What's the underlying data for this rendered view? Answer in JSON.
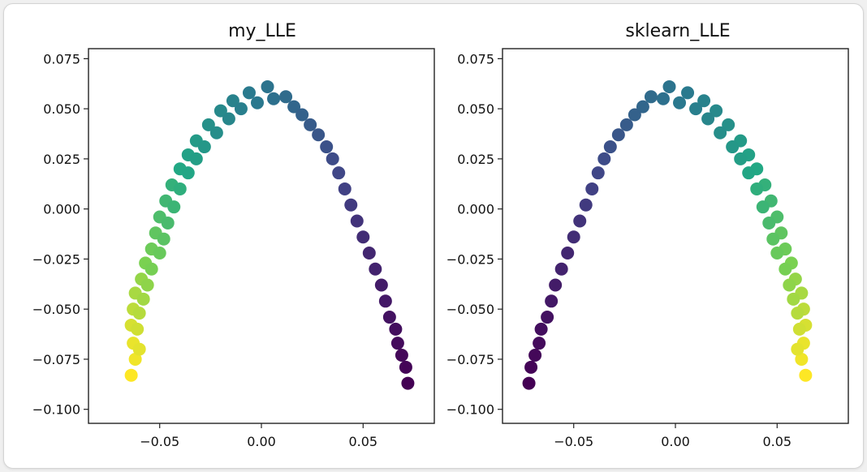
{
  "figure_background": "#ffffff",
  "colormap": [
    "#440154",
    "#414487",
    "#2a788e",
    "#22a884",
    "#7ad151",
    "#fde725"
  ],
  "chart_data": [
    {
      "type": "scatter",
      "title": "my_LLE",
      "xlabel": "",
      "ylabel": "",
      "xlim": [
        -0.085,
        0.085
      ],
      "ylim": [
        -0.107,
        0.08
      ],
      "xticks": [
        -0.05,
        0.0,
        0.05
      ],
      "xtick_labels": [
        "−0.05",
        "0.00",
        "0.05"
      ],
      "yticks": [
        0.075,
        0.05,
        0.025,
        0.0,
        -0.025,
        -0.05,
        -0.075,
        -0.1
      ],
      "ytick_labels": [
        "0.075",
        "0.050",
        "0.025",
        "0.000",
        "−0.025",
        "−0.050",
        "−0.075",
        "−0.100"
      ],
      "color_by": "color_value (0 = dark purple, 1 = yellow)",
      "points": [
        {
          "x": -0.064,
          "y": -0.083,
          "c": 1.0
        },
        {
          "x": -0.062,
          "y": -0.075,
          "c": 0.98
        },
        {
          "x": -0.063,
          "y": -0.067,
          "c": 0.97
        },
        {
          "x": -0.06,
          "y": -0.07,
          "c": 0.96
        },
        {
          "x": -0.064,
          "y": -0.058,
          "c": 0.94
        },
        {
          "x": -0.061,
          "y": -0.06,
          "c": 0.93
        },
        {
          "x": -0.063,
          "y": -0.05,
          "c": 0.9
        },
        {
          "x": -0.06,
          "y": -0.052,
          "c": 0.89
        },
        {
          "x": -0.062,
          "y": -0.042,
          "c": 0.87
        },
        {
          "x": -0.058,
          "y": -0.045,
          "c": 0.86
        },
        {
          "x": -0.059,
          "y": -0.035,
          "c": 0.84
        },
        {
          "x": -0.056,
          "y": -0.038,
          "c": 0.83
        },
        {
          "x": -0.057,
          "y": -0.027,
          "c": 0.8
        },
        {
          "x": -0.054,
          "y": -0.03,
          "c": 0.79
        },
        {
          "x": -0.054,
          "y": -0.02,
          "c": 0.77
        },
        {
          "x": -0.05,
          "y": -0.022,
          "c": 0.76
        },
        {
          "x": -0.052,
          "y": -0.012,
          "c": 0.74
        },
        {
          "x": -0.048,
          "y": -0.015,
          "c": 0.73
        },
        {
          "x": -0.05,
          "y": -0.004,
          "c": 0.7
        },
        {
          "x": -0.046,
          "y": -0.007,
          "c": 0.69
        },
        {
          "x": -0.047,
          "y": 0.004,
          "c": 0.67
        },
        {
          "x": -0.043,
          "y": 0.001,
          "c": 0.66
        },
        {
          "x": -0.044,
          "y": 0.012,
          "c": 0.64
        },
        {
          "x": -0.04,
          "y": 0.01,
          "c": 0.63
        },
        {
          "x": -0.04,
          "y": 0.02,
          "c": 0.6
        },
        {
          "x": -0.036,
          "y": 0.018,
          "c": 0.59
        },
        {
          "x": -0.036,
          "y": 0.027,
          "c": 0.57
        },
        {
          "x": -0.032,
          "y": 0.025,
          "c": 0.56
        },
        {
          "x": -0.032,
          "y": 0.034,
          "c": 0.54
        },
        {
          "x": -0.028,
          "y": 0.031,
          "c": 0.53
        },
        {
          "x": -0.026,
          "y": 0.042,
          "c": 0.5
        },
        {
          "x": -0.022,
          "y": 0.038,
          "c": 0.49
        },
        {
          "x": -0.02,
          "y": 0.049,
          "c": 0.47
        },
        {
          "x": -0.016,
          "y": 0.045,
          "c": 0.46
        },
        {
          "x": -0.014,
          "y": 0.054,
          "c": 0.44
        },
        {
          "x": -0.01,
          "y": 0.05,
          "c": 0.43
        },
        {
          "x": -0.006,
          "y": 0.058,
          "c": 0.41
        },
        {
          "x": -0.002,
          "y": 0.053,
          "c": 0.4
        },
        {
          "x": 0.003,
          "y": 0.061,
          "c": 0.38
        },
        {
          "x": 0.006,
          "y": 0.055,
          "c": 0.37
        },
        {
          "x": 0.012,
          "y": 0.056,
          "c": 0.35
        },
        {
          "x": 0.016,
          "y": 0.051,
          "c": 0.33
        },
        {
          "x": 0.02,
          "y": 0.047,
          "c": 0.31
        },
        {
          "x": 0.024,
          "y": 0.042,
          "c": 0.29
        },
        {
          "x": 0.028,
          "y": 0.037,
          "c": 0.27
        },
        {
          "x": 0.032,
          "y": 0.031,
          "c": 0.25
        },
        {
          "x": 0.035,
          "y": 0.025,
          "c": 0.23
        },
        {
          "x": 0.038,
          "y": 0.018,
          "c": 0.21
        },
        {
          "x": 0.041,
          "y": 0.01,
          "c": 0.19
        },
        {
          "x": 0.044,
          "y": 0.002,
          "c": 0.17
        },
        {
          "x": 0.047,
          "y": -0.006,
          "c": 0.15
        },
        {
          "x": 0.05,
          "y": -0.014,
          "c": 0.13
        },
        {
          "x": 0.053,
          "y": -0.022,
          "c": 0.11
        },
        {
          "x": 0.056,
          "y": -0.03,
          "c": 0.1
        },
        {
          "x": 0.059,
          "y": -0.038,
          "c": 0.08
        },
        {
          "x": 0.061,
          "y": -0.046,
          "c": 0.07
        },
        {
          "x": 0.063,
          "y": -0.054,
          "c": 0.05
        },
        {
          "x": 0.066,
          "y": -0.06,
          "c": 0.04
        },
        {
          "x": 0.067,
          "y": -0.067,
          "c": 0.03
        },
        {
          "x": 0.069,
          "y": -0.073,
          "c": 0.02
        },
        {
          "x": 0.071,
          "y": -0.079,
          "c": 0.01
        },
        {
          "x": 0.072,
          "y": -0.087,
          "c": 0.0
        }
      ]
    },
    {
      "type": "scatter",
      "title": "sklearn_LLE",
      "xlabel": "",
      "ylabel": "",
      "xlim": [
        -0.085,
        0.085
      ],
      "ylim": [
        -0.107,
        0.08
      ],
      "xticks": [
        -0.05,
        0.0,
        0.05
      ],
      "xtick_labels": [
        "−0.05",
        "0.00",
        "0.05"
      ],
      "yticks": [
        0.075,
        0.05,
        0.025,
        0.0,
        -0.025,
        -0.05,
        -0.075,
        -0.1
      ],
      "ytick_labels": [
        "0.075",
        "0.050",
        "0.025",
        "0.000",
        "−0.025",
        "−0.050",
        "−0.075",
        "−0.100"
      ],
      "color_by": "color_value (0 = dark purple, 1 = yellow)",
      "points": [
        {
          "x": 0.064,
          "y": -0.083,
          "c": 1.0
        },
        {
          "x": 0.062,
          "y": -0.075,
          "c": 0.98
        },
        {
          "x": 0.063,
          "y": -0.067,
          "c": 0.97
        },
        {
          "x": 0.06,
          "y": -0.07,
          "c": 0.96
        },
        {
          "x": 0.064,
          "y": -0.058,
          "c": 0.94
        },
        {
          "x": 0.061,
          "y": -0.06,
          "c": 0.93
        },
        {
          "x": 0.063,
          "y": -0.05,
          "c": 0.9
        },
        {
          "x": 0.06,
          "y": -0.052,
          "c": 0.89
        },
        {
          "x": 0.062,
          "y": -0.042,
          "c": 0.87
        },
        {
          "x": 0.058,
          "y": -0.045,
          "c": 0.86
        },
        {
          "x": 0.059,
          "y": -0.035,
          "c": 0.84
        },
        {
          "x": 0.056,
          "y": -0.038,
          "c": 0.83
        },
        {
          "x": 0.057,
          "y": -0.027,
          "c": 0.8
        },
        {
          "x": 0.054,
          "y": -0.03,
          "c": 0.79
        },
        {
          "x": 0.054,
          "y": -0.02,
          "c": 0.77
        },
        {
          "x": 0.05,
          "y": -0.022,
          "c": 0.76
        },
        {
          "x": 0.052,
          "y": -0.012,
          "c": 0.74
        },
        {
          "x": 0.048,
          "y": -0.015,
          "c": 0.73
        },
        {
          "x": 0.05,
          "y": -0.004,
          "c": 0.7
        },
        {
          "x": 0.046,
          "y": -0.007,
          "c": 0.69
        },
        {
          "x": 0.047,
          "y": 0.004,
          "c": 0.67
        },
        {
          "x": 0.043,
          "y": 0.001,
          "c": 0.66
        },
        {
          "x": 0.044,
          "y": 0.012,
          "c": 0.64
        },
        {
          "x": 0.04,
          "y": 0.01,
          "c": 0.63
        },
        {
          "x": 0.04,
          "y": 0.02,
          "c": 0.6
        },
        {
          "x": 0.036,
          "y": 0.018,
          "c": 0.59
        },
        {
          "x": 0.036,
          "y": 0.027,
          "c": 0.57
        },
        {
          "x": 0.032,
          "y": 0.025,
          "c": 0.56
        },
        {
          "x": 0.032,
          "y": 0.034,
          "c": 0.54
        },
        {
          "x": 0.028,
          "y": 0.031,
          "c": 0.53
        },
        {
          "x": 0.026,
          "y": 0.042,
          "c": 0.5
        },
        {
          "x": 0.022,
          "y": 0.038,
          "c": 0.49
        },
        {
          "x": 0.02,
          "y": 0.049,
          "c": 0.47
        },
        {
          "x": 0.016,
          "y": 0.045,
          "c": 0.46
        },
        {
          "x": 0.014,
          "y": 0.054,
          "c": 0.44
        },
        {
          "x": 0.01,
          "y": 0.05,
          "c": 0.43
        },
        {
          "x": 0.006,
          "y": 0.058,
          "c": 0.41
        },
        {
          "x": 0.002,
          "y": 0.053,
          "c": 0.4
        },
        {
          "x": -0.003,
          "y": 0.061,
          "c": 0.38
        },
        {
          "x": -0.006,
          "y": 0.055,
          "c": 0.37
        },
        {
          "x": -0.012,
          "y": 0.056,
          "c": 0.35
        },
        {
          "x": -0.016,
          "y": 0.051,
          "c": 0.33
        },
        {
          "x": -0.02,
          "y": 0.047,
          "c": 0.31
        },
        {
          "x": -0.024,
          "y": 0.042,
          "c": 0.29
        },
        {
          "x": -0.028,
          "y": 0.037,
          "c": 0.27
        },
        {
          "x": -0.032,
          "y": 0.031,
          "c": 0.25
        },
        {
          "x": -0.035,
          "y": 0.025,
          "c": 0.23
        },
        {
          "x": -0.038,
          "y": 0.018,
          "c": 0.21
        },
        {
          "x": -0.041,
          "y": 0.01,
          "c": 0.19
        },
        {
          "x": -0.044,
          "y": 0.002,
          "c": 0.17
        },
        {
          "x": -0.047,
          "y": -0.006,
          "c": 0.15
        },
        {
          "x": -0.05,
          "y": -0.014,
          "c": 0.13
        },
        {
          "x": -0.053,
          "y": -0.022,
          "c": 0.11
        },
        {
          "x": -0.056,
          "y": -0.03,
          "c": 0.1
        },
        {
          "x": -0.059,
          "y": -0.038,
          "c": 0.08
        },
        {
          "x": -0.061,
          "y": -0.046,
          "c": 0.07
        },
        {
          "x": -0.063,
          "y": -0.054,
          "c": 0.05
        },
        {
          "x": -0.066,
          "y": -0.06,
          "c": 0.04
        },
        {
          "x": -0.067,
          "y": -0.067,
          "c": 0.03
        },
        {
          "x": -0.069,
          "y": -0.073,
          "c": 0.02
        },
        {
          "x": -0.071,
          "y": -0.079,
          "c": 0.01
        },
        {
          "x": -0.072,
          "y": -0.087,
          "c": 0.0
        }
      ]
    }
  ]
}
